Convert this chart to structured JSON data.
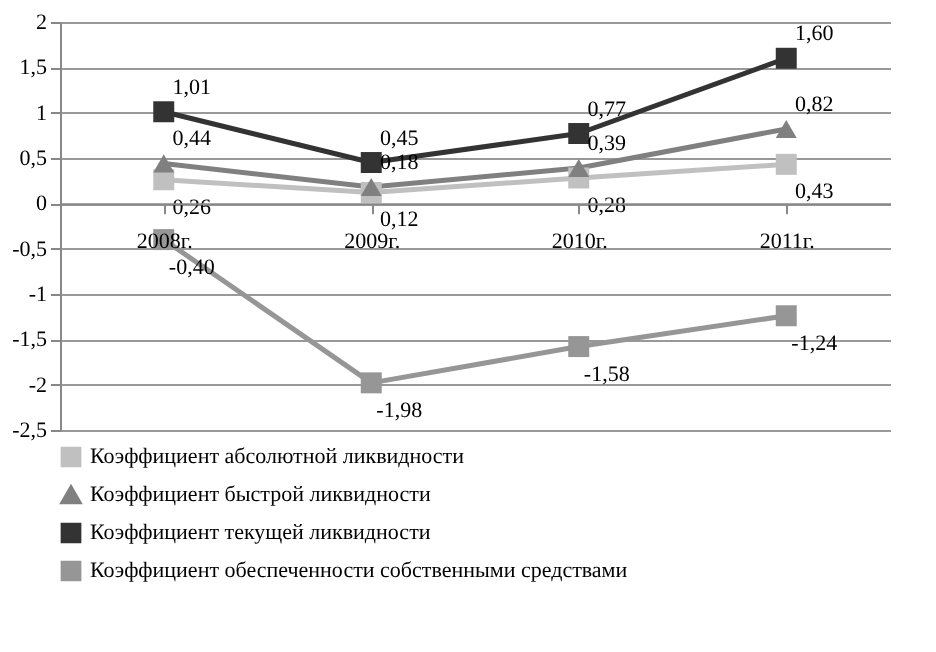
{
  "chart_data": {
    "type": "line",
    "categories": [
      "2008г.",
      "2009г.",
      "2010г.",
      "2011г."
    ],
    "ylim": [
      -2.5,
      2
    ],
    "yticks": [
      {
        "value": -2.5,
        "label": "-2,5"
      },
      -2,
      {
        "value": -1.5,
        "label": "-1,5"
      },
      -1,
      {
        "value": -0.5,
        "label": "-0,5"
      },
      0,
      {
        "value": 0.5,
        "label": "0,5"
      },
      1,
      {
        "value": 1.5,
        "label": "1,5"
      },
      2
    ],
    "grid": "y",
    "legend": "bottom",
    "series": [
      {
        "name": "Коэффициент абсолютной ликвидности",
        "color": "#c0c0c0",
        "marker": "square",
        "values": [
          0.26,
          0.12,
          0.28,
          0.43
        ],
        "value_labels": [
          "0,26",
          "0,12",
          "0,28",
          "0,43"
        ]
      },
      {
        "name": "Коэффициент быстрой ликвидности",
        "color": "#808080",
        "marker": "triangle",
        "values": [
          0.44,
          0.18,
          0.39,
          0.82
        ],
        "value_labels": [
          "0,44",
          "0,18",
          "0,39",
          "0,82"
        ]
      },
      {
        "name": "Коэффициент текущей ликвидности",
        "color": "#333333",
        "marker": "square",
        "values": [
          1.01,
          0.45,
          0.77,
          1.6
        ],
        "value_labels": [
          "1,01",
          "0,45",
          "0,77",
          "1,60"
        ]
      },
      {
        "name": "Коэффициент обеспеченности собственными средствами",
        "color": "#969696",
        "marker": "square",
        "values": [
          -0.4,
          -1.98,
          -1.58,
          -1.24
        ],
        "value_labels": [
          "-0,40",
          "-1,98",
          "-1,58",
          "-1,24"
        ]
      }
    ]
  }
}
